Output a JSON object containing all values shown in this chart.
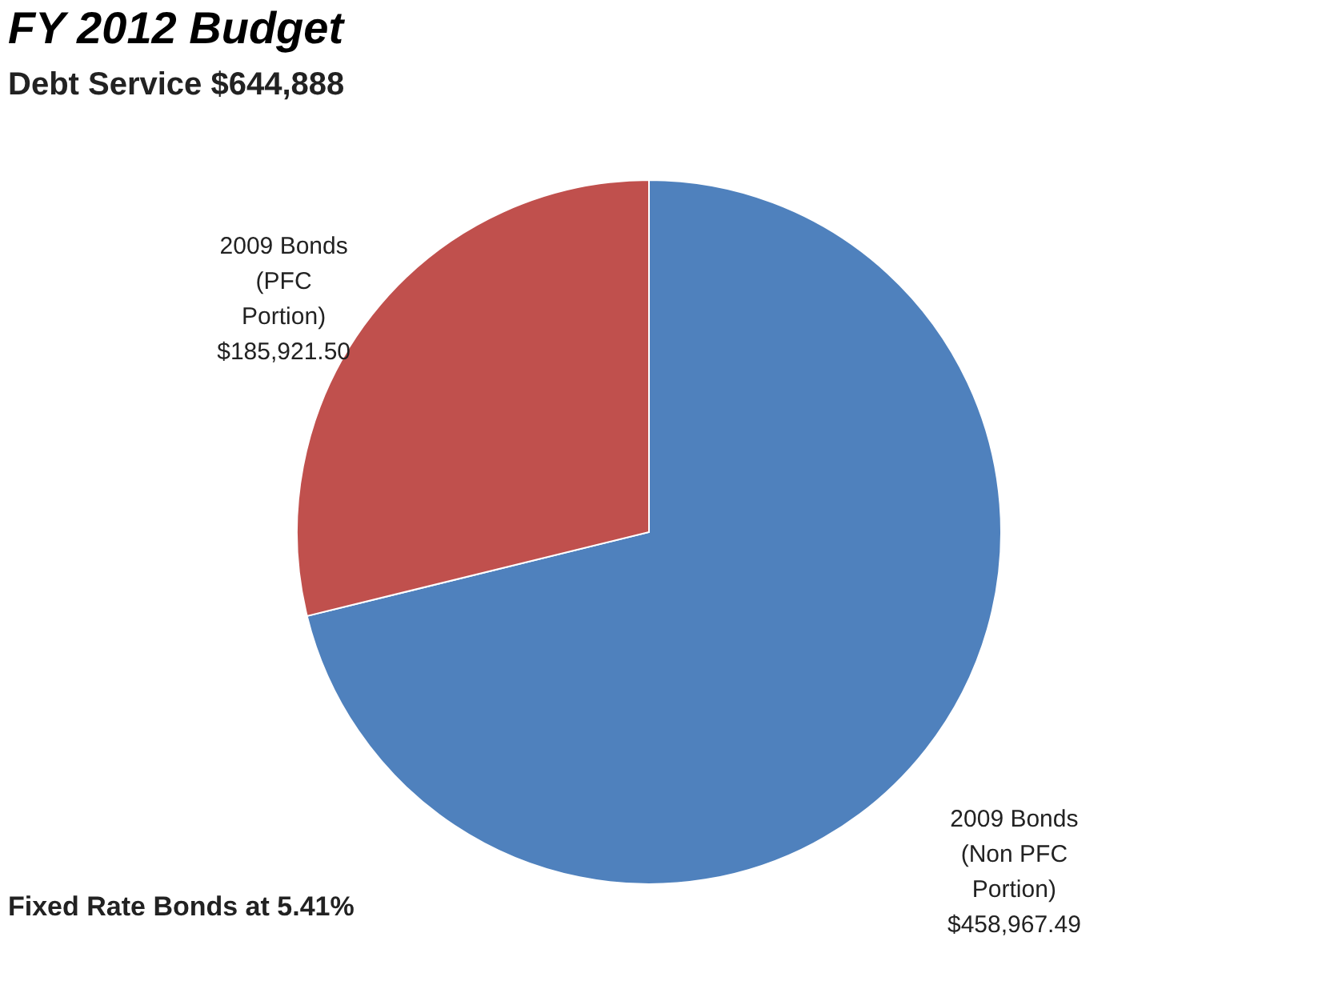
{
  "chart_data": {
    "type": "pie",
    "title": "FY 2012 Budget",
    "subtitle": "Debt Service   $644,888",
    "categories": [
      "2009 Bonds (Non PFC Portion)",
      "2009 Bonds (PFC Portion)"
    ],
    "values": [
      458967.49,
      185921.5
    ],
    "colors": [
      "#4f81bd",
      "#c0504d"
    ],
    "value_labels": [
      "$458,967.49",
      "$185,921.50"
    ],
    "annotations": [
      "Fixed Rate Bonds at 5.41%"
    ],
    "legend": false
  }
}
